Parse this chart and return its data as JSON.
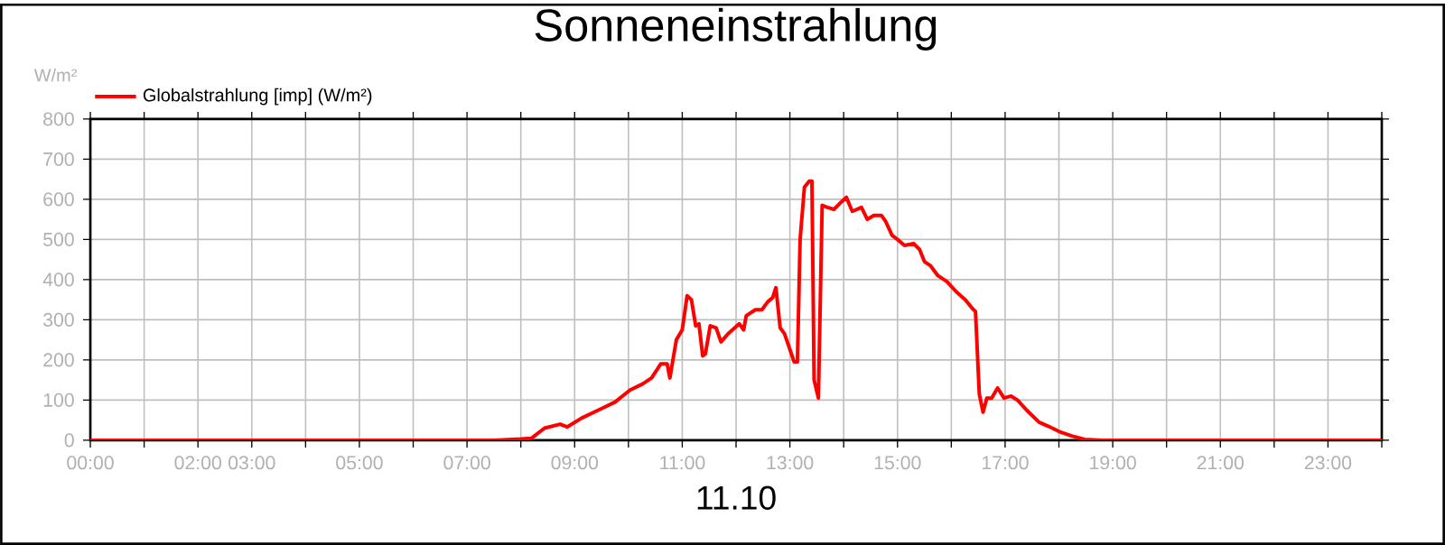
{
  "chart_data": {
    "type": "line",
    "title": "Sonneneinstrahlung",
    "xlabel": "11.10",
    "ylabel": "W/m²",
    "x": [
      0,
      7.5,
      8.0,
      8.2,
      8.44,
      8.73,
      8.86,
      9.13,
      9.52,
      9.75,
      10.03,
      10.26,
      10.43,
      10.6,
      10.72,
      10.77,
      10.89,
      11.0,
      11.09,
      11.17,
      11.25,
      11.31,
      11.38,
      11.43,
      11.52,
      11.63,
      11.72,
      11.85,
      12.06,
      12.14,
      12.19,
      12.36,
      12.48,
      12.59,
      12.68,
      12.74,
      12.82,
      12.9,
      13.08,
      13.14,
      13.19,
      13.27,
      13.36,
      13.41,
      13.45,
      13.53,
      13.6,
      13.7,
      13.82,
      13.93,
      14.05,
      14.16,
      14.33,
      14.44,
      14.56,
      14.7,
      14.78,
      14.9,
      15.0,
      15.13,
      15.3,
      15.41,
      15.5,
      15.61,
      15.75,
      15.92,
      16.09,
      16.26,
      16.38,
      16.45,
      16.52,
      16.59,
      16.66,
      16.75,
      16.86,
      16.98,
      17.11,
      17.23,
      17.4,
      17.63,
      17.8,
      18.03,
      18.25,
      18.48,
      18.8,
      24
    ],
    "series": [
      {
        "name": "Globalstrahlung [imp] (W/m²)",
        "color": "#ff0000",
        "values": [
          0,
          0,
          3,
          5,
          30,
          40,
          33,
          55,
          80,
          95,
          125,
          140,
          155,
          190,
          190,
          155,
          250,
          275,
          360,
          350,
          285,
          290,
          210,
          215,
          285,
          280,
          245,
          265,
          290,
          275,
          310,
          325,
          325,
          345,
          355,
          380,
          280,
          265,
          195,
          195,
          500,
          630,
          645,
          645,
          150,
          105,
          585,
          580,
          575,
          590,
          605,
          570,
          580,
          550,
          560,
          560,
          545,
          510,
          500,
          485,
          490,
          475,
          445,
          435,
          410,
          395,
          370,
          350,
          330,
          320,
          115,
          70,
          105,
          105,
          130,
          105,
          110,
          100,
          75,
          45,
          35,
          20,
          10,
          2,
          0,
          0
        ]
      }
    ],
    "xlim": [
      0,
      24
    ],
    "xticks": [
      {
        "value": 0,
        "label": "00:00"
      },
      {
        "value": 1,
        "label": null
      },
      {
        "value": 2,
        "label": "02:00"
      },
      {
        "value": 3,
        "label": "03:00"
      },
      {
        "value": 4,
        "label": null
      },
      {
        "value": 5,
        "label": "05:00"
      },
      {
        "value": 6,
        "label": null
      },
      {
        "value": 7,
        "label": "07:00"
      },
      {
        "value": 8,
        "label": null
      },
      {
        "value": 9,
        "label": "09:00"
      },
      {
        "value": 10,
        "label": null
      },
      {
        "value": 11,
        "label": "11:00"
      },
      {
        "value": 12,
        "label": null
      },
      {
        "value": 13,
        "label": "13:00"
      },
      {
        "value": 14,
        "label": null
      },
      {
        "value": 15,
        "label": "15:00"
      },
      {
        "value": 16,
        "label": null
      },
      {
        "value": 17,
        "label": "17:00"
      },
      {
        "value": 18,
        "label": null
      },
      {
        "value": 19,
        "label": "19:00"
      },
      {
        "value": 20,
        "label": null
      },
      {
        "value": 21,
        "label": "21:00"
      },
      {
        "value": 22,
        "label": null
      },
      {
        "value": 23,
        "label": "23:00"
      },
      {
        "value": 24,
        "label": null
      }
    ],
    "ylim": [
      0,
      800
    ],
    "yticks": [
      0,
      100,
      200,
      300,
      400,
      500,
      600,
      700,
      800
    ],
    "grid": true,
    "legend": "top left",
    "line_style": "solid"
  }
}
